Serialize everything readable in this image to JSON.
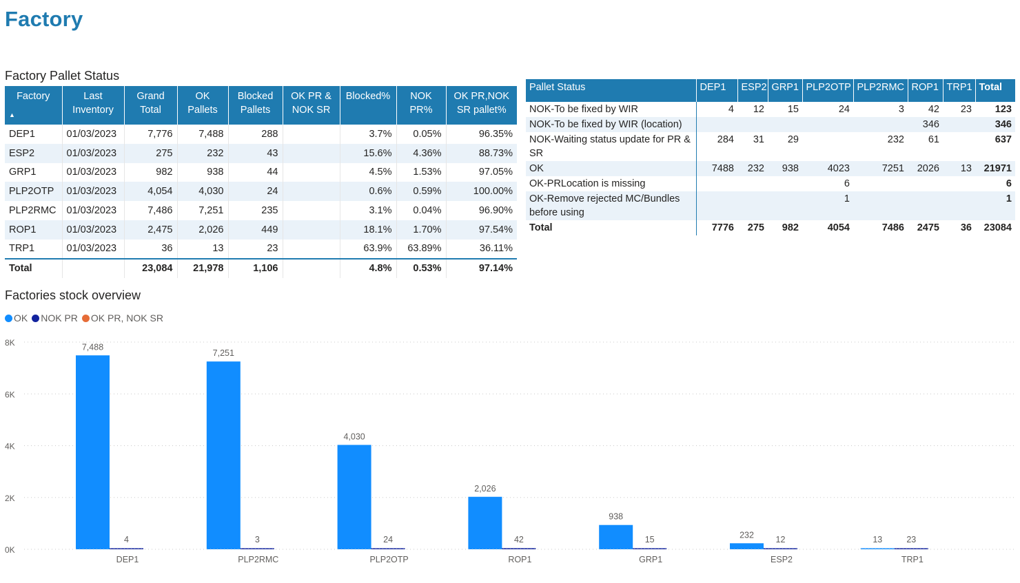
{
  "page_title": "Factory",
  "table1": {
    "title": "Factory Pallet Status",
    "headers": [
      "Factory",
      "Last Inventory",
      "Grand Total",
      "OK Pallets",
      "Blocked Pallets",
      "OK PR & NOK SR",
      "Blocked%",
      "NOK PR%",
      "OK PR,NOK SR pallet%"
    ],
    "sort_icon": "sort-ascending-icon",
    "rows": [
      [
        "DEP1",
        "01/03/2023",
        "7,776",
        "7,488",
        "288",
        "",
        "3.7%",
        "0.05%",
        "96.35%"
      ],
      [
        "ESP2",
        "01/03/2023",
        "275",
        "232",
        "43",
        "",
        "15.6%",
        "4.36%",
        "88.73%"
      ],
      [
        "GRP1",
        "01/03/2023",
        "982",
        "938",
        "44",
        "",
        "4.5%",
        "1.53%",
        "97.05%"
      ],
      [
        "PLP2OTP",
        "01/03/2023",
        "4,054",
        "4,030",
        "24",
        "",
        "0.6%",
        "0.59%",
        "100.00%"
      ],
      [
        "PLP2RMC",
        "01/03/2023",
        "7,486",
        "7,251",
        "235",
        "",
        "3.1%",
        "0.04%",
        "96.90%"
      ],
      [
        "ROP1",
        "01/03/2023",
        "2,475",
        "2,026",
        "449",
        "",
        "18.1%",
        "1.70%",
        "97.54%"
      ],
      [
        "TRP1",
        "01/03/2023",
        "36",
        "13",
        "23",
        "",
        "63.9%",
        "63.89%",
        "36.11%"
      ]
    ],
    "total": [
      "Total",
      "",
      "23,084",
      "21,978",
      "1,106",
      "",
      "4.8%",
      "0.53%",
      "97.14%"
    ]
  },
  "table2": {
    "headers": [
      "Pallet Status",
      "DEP1",
      "ESP2",
      "GRP1",
      "PLP2OTP",
      "PLP2RMC",
      "ROP1",
      "TRP1",
      "Total"
    ],
    "rows": [
      [
        "NOK-To be fixed by WIR",
        "4",
        "12",
        "15",
        "24",
        "3",
        "42",
        "23",
        "123"
      ],
      [
        "NOK-To be fixed by WIR (location)",
        "",
        "",
        "",
        "",
        "",
        "346",
        "",
        "346"
      ],
      [
        "NOK-Waiting status update for PR & SR",
        "284",
        "31",
        "29",
        "",
        "232",
        "61",
        "",
        "637"
      ],
      [
        "OK",
        "7488",
        "232",
        "938",
        "4023",
        "7251",
        "2026",
        "13",
        "21971"
      ],
      [
        "OK-PRLocation is missing",
        "",
        "",
        "",
        "6",
        "",
        "",
        "",
        "6"
      ],
      [
        "OK-Remove rejected MC/Bundles before using",
        "",
        "",
        "",
        "1",
        "",
        "",
        "",
        "1"
      ]
    ],
    "total": [
      "Total",
      "7776",
      "275",
      "982",
      "4054",
      "7486",
      "2475",
      "36",
      "23084"
    ]
  },
  "chart_title": "Factories stock overview",
  "legend": [
    {
      "label": "OK",
      "color": "#118dff"
    },
    {
      "label": "NOK PR",
      "color": "#12239e"
    },
    {
      "label": "OK PR, NOK SR",
      "color": "#e66c37"
    }
  ],
  "chart_data": {
    "type": "bar",
    "title": "Factories stock overview",
    "categories": [
      "DEP1",
      "PLP2RMC",
      "PLP2OTP",
      "ROP1",
      "GRP1",
      "ESP2",
      "TRP1"
    ],
    "series": [
      {
        "name": "OK",
        "color": "#118dff",
        "values": [
          7488,
          7251,
          4030,
          2026,
          938,
          232,
          13
        ]
      },
      {
        "name": "NOK PR",
        "color": "#12239e",
        "values": [
          4,
          3,
          24,
          42,
          15,
          12,
          23
        ]
      },
      {
        "name": "OK PR, NOK SR",
        "color": "#e66c37",
        "values": [
          0,
          0,
          0,
          0,
          0,
          0,
          0
        ]
      }
    ],
    "data_labels": [
      [
        "7,488",
        "7,251",
        "4,030",
        "2,026",
        "938",
        "232",
        "13"
      ],
      [
        "4",
        "3",
        "24",
        "42",
        "15",
        "12",
        "23"
      ]
    ],
    "y_ticks": [
      0,
      2000,
      4000,
      6000,
      8000
    ],
    "y_tick_labels": [
      "0K",
      "2K",
      "4K",
      "6K",
      "8K"
    ],
    "ylim": [
      0,
      8000
    ],
    "grid": true,
    "legend_position": "top-left"
  }
}
